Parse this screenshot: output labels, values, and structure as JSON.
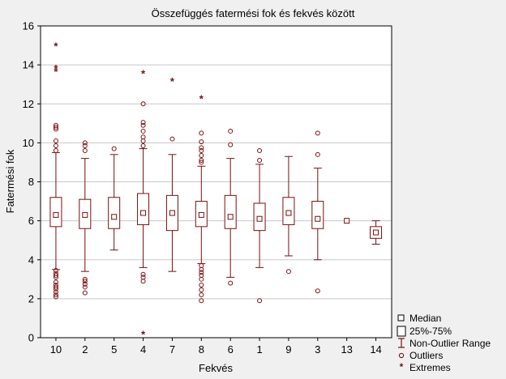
{
  "chart_data": {
    "type": "box",
    "title": "Összefüggés fatermési fok és fekvés között",
    "xlabel": "Fekvés",
    "ylabel": "Fatermési fok",
    "ylim": [
      0,
      16
    ],
    "yticks": [
      0,
      2,
      4,
      6,
      8,
      10,
      12,
      14,
      16
    ],
    "grid": true,
    "legend_position": "bottom-right",
    "colors": {
      "mark": "#7a0f0f",
      "grid": "#c8c8c8",
      "background": "#f0f0f0",
      "plot_bg": "#ffffff"
    },
    "categories": [
      "10",
      "2",
      "5",
      "4",
      "7",
      "8",
      "6",
      "1",
      "9",
      "3",
      "13",
      "14"
    ],
    "boxes": [
      {
        "median": 6.3,
        "q1": 5.7,
        "q3": 7.2,
        "min": 3.5,
        "max": 9.5,
        "outliers": [
          2.1,
          2.2,
          2.35,
          2.5,
          2.6,
          2.7,
          2.85,
          3.1,
          3.2,
          3.3,
          3.45,
          9.6,
          9.85,
          10.1,
          10.7,
          10.8,
          10.9
        ],
        "extremes": [
          13.7,
          13.85,
          15.0
        ]
      },
      {
        "median": 6.3,
        "q1": 5.6,
        "q3": 7.1,
        "min": 3.4,
        "max": 9.2,
        "outliers": [
          2.3,
          2.6,
          2.75,
          2.9,
          3.0,
          9.6,
          9.85,
          10.0
        ],
        "extremes": []
      },
      {
        "median": 6.2,
        "q1": 5.6,
        "q3": 7.2,
        "min": 4.5,
        "max": 9.4,
        "outliers": [
          9.7
        ],
        "extremes": []
      },
      {
        "median": 6.4,
        "q1": 5.8,
        "q3": 7.4,
        "min": 3.6,
        "max": 9.7,
        "outliers": [
          2.9,
          3.1,
          3.25,
          9.85,
          10.1,
          10.3,
          10.6,
          10.9,
          11.05,
          12.0
        ],
        "extremes": [
          0.2,
          13.6
        ]
      },
      {
        "median": 6.4,
        "q1": 5.5,
        "q3": 7.3,
        "min": 3.4,
        "max": 9.4,
        "outliers": [
          10.2
        ],
        "extremes": [
          13.2
        ]
      },
      {
        "median": 6.3,
        "q1": 5.7,
        "q3": 7.0,
        "min": 3.8,
        "max": 8.8,
        "outliers": [
          1.9,
          2.2,
          2.45,
          2.7,
          3.0,
          3.2,
          3.35,
          3.5,
          3.7,
          9.0,
          9.1,
          9.35,
          9.6,
          9.75,
          10.05,
          10.5
        ],
        "extremes": [
          12.3
        ]
      },
      {
        "median": 6.2,
        "q1": 5.6,
        "q3": 7.3,
        "min": 3.1,
        "max": 9.2,
        "outliers": [
          2.8,
          9.9,
          10.6
        ],
        "extremes": []
      },
      {
        "median": 6.1,
        "q1": 5.5,
        "q3": 6.9,
        "min": 3.6,
        "max": 8.9,
        "outliers": [
          1.9,
          9.1,
          9.6
        ],
        "extremes": []
      },
      {
        "median": 6.4,
        "q1": 5.8,
        "q3": 7.2,
        "min": 4.2,
        "max": 9.3,
        "outliers": [
          3.4
        ],
        "extremes": []
      },
      {
        "median": 6.1,
        "q1": 5.6,
        "q3": 7.0,
        "min": 4.0,
        "max": 8.7,
        "outliers": [
          2.4,
          9.4,
          10.5
        ],
        "extremes": []
      },
      {
        "median": 6.0,
        "q1": 6.0,
        "q3": 6.0,
        "min": 6.0,
        "max": 6.0,
        "outliers": [],
        "extremes": []
      },
      {
        "median": 5.4,
        "q1": 5.1,
        "q3": 5.7,
        "min": 4.8,
        "max": 6.0,
        "outliers": [],
        "extremes": []
      }
    ],
    "legend": [
      "Median",
      "25%-75%",
      "Non-Outlier Range",
      "Outliers",
      "Extremes"
    ]
  }
}
